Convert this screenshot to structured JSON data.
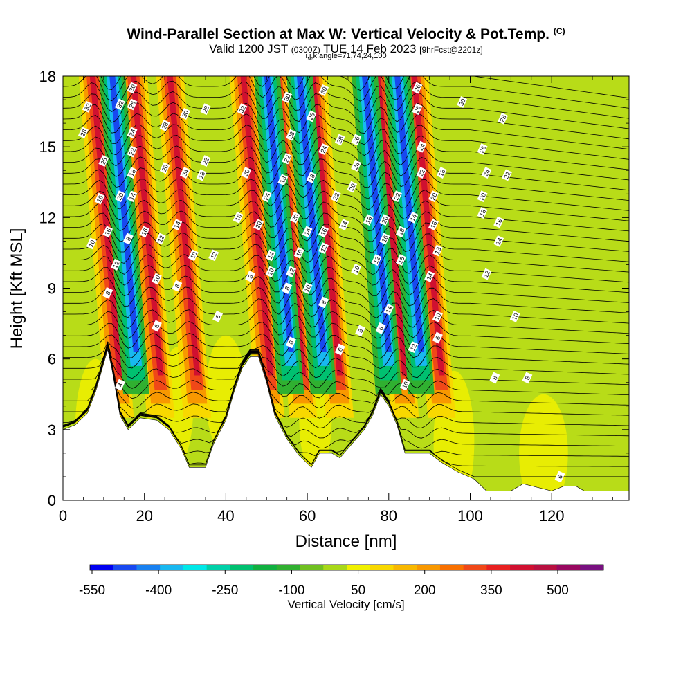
{
  "header": {
    "title": "Wind-Parallel Section at Max W: Vertical Velocity & Pot.Temp.",
    "title_tag": "(C)",
    "valid_prefix": "Valid 1200 JST",
    "valid_utc": "(0300Z)",
    "valid_date": "TUE 14 Feb 2023",
    "forecast": "[9hrFcst@2201z]",
    "indices": "i,j,k,angle=71,74,24,100"
  },
  "chart_data": {
    "type": "heatmap",
    "xlabel": "Distance [nm]",
    "ylabel": "Height [Kft MSL]",
    "xlim": [
      0,
      139
    ],
    "ylim": [
      0,
      18
    ],
    "xticks": [
      "0",
      "20",
      "40",
      "60",
      "80",
      "100",
      "120"
    ],
    "yticks": [
      "0",
      "3",
      "6",
      "9",
      "12",
      "15",
      "18"
    ],
    "colorbar": {
      "label": "Vertical Velocity [cm/s]",
      "tick_labels": [
        "-550",
        "-400",
        "-250",
        "-100",
        "50",
        "200",
        "350",
        "500"
      ],
      "colors": [
        "#0000f0",
        "#1848f0",
        "#1880f0",
        "#18b8f0",
        "#00e8e8",
        "#00d0a8",
        "#00c070",
        "#10b040",
        "#30b030",
        "#70c020",
        "#a8d818",
        "#f0f000",
        "#f8d800",
        "#f8b800",
        "#f89800",
        "#f87000",
        "#f04818",
        "#e82020",
        "#d01030",
        "#b81040",
        "#980860",
        "#781080"
      ]
    },
    "terrain_kft": [
      [
        0,
        3.0
      ],
      [
        3,
        3.2
      ],
      [
        6,
        3.7
      ],
      [
        8,
        4.6
      ],
      [
        10,
        5.8
      ],
      [
        11,
        6.4
      ],
      [
        12,
        5.6
      ],
      [
        13,
        4.6
      ],
      [
        14,
        3.6
      ],
      [
        16,
        3.0
      ],
      [
        19,
        3.5
      ],
      [
        23,
        3.4
      ],
      [
        26,
        3.0
      ],
      [
        29,
        2.2
      ],
      [
        31,
        1.4
      ],
      [
        35,
        1.4
      ],
      [
        37,
        2.4
      ],
      [
        40,
        3.4
      ],
      [
        42,
        4.6
      ],
      [
        44,
        5.6
      ],
      [
        46,
        6.1
      ],
      [
        48,
        6.1
      ],
      [
        50,
        5.0
      ],
      [
        52,
        3.6
      ],
      [
        55,
        2.6
      ],
      [
        58,
        1.9
      ],
      [
        61,
        1.4
      ],
      [
        63,
        2.0
      ],
      [
        66,
        2.0
      ],
      [
        68,
        1.8
      ],
      [
        71,
        2.4
      ],
      [
        74,
        3.0
      ],
      [
        76,
        3.6
      ],
      [
        78,
        4.5
      ],
      [
        80,
        4.0
      ],
      [
        82,
        3.2
      ],
      [
        84,
        2.0
      ],
      [
        87,
        2.0
      ],
      [
        90,
        2.0
      ],
      [
        93,
        1.6
      ],
      [
        97,
        1.2
      ],
      [
        101,
        0.9
      ],
      [
        104,
        0.4
      ],
      [
        110,
        0.4
      ],
      [
        113,
        0.7
      ],
      [
        120,
        0.4
      ],
      [
        123,
        0.6
      ],
      [
        126,
        0.6
      ],
      [
        128,
        0.4
      ],
      [
        139,
        0.4
      ]
    ],
    "updraft_bands_nm": [
      14,
      24,
      33,
      51,
      59,
      68,
      84,
      93
    ],
    "downdraft_bands_nm": [
      18,
      56,
      64,
      80,
      88
    ],
    "contour_labels": [
      {
        "text": "32",
        "x": 6,
        "y": 16.7
      },
      {
        "text": "28",
        "x": 5,
        "y": 15.6
      },
      {
        "text": "26",
        "x": 10,
        "y": 14.4
      },
      {
        "text": "16",
        "x": 9,
        "y": 12.8
      },
      {
        "text": "10",
        "x": 7,
        "y": 10.9
      },
      {
        "text": "8",
        "x": 11,
        "y": 8.8
      },
      {
        "text": "30",
        "x": 17,
        "y": 17.5
      },
      {
        "text": "32",
        "x": 14,
        "y": 16.8
      },
      {
        "text": "26",
        "x": 17,
        "y": 16.8
      },
      {
        "text": "24",
        "x": 17,
        "y": 15.6
      },
      {
        "text": "22",
        "x": 17,
        "y": 14.8
      },
      {
        "text": "18",
        "x": 17,
        "y": 13.9
      },
      {
        "text": "20",
        "x": 14,
        "y": 12.9
      },
      {
        "text": "14",
        "x": 17,
        "y": 12.9
      },
      {
        "text": "16",
        "x": 11,
        "y": 11.4
      },
      {
        "text": "8",
        "x": 16,
        "y": 11.1
      },
      {
        "text": "16",
        "x": 20,
        "y": 11.4
      },
      {
        "text": "12",
        "x": 13,
        "y": 10.0
      },
      {
        "text": "4",
        "x": 14,
        "y": 4.9
      },
      {
        "text": "28",
        "x": 25,
        "y": 15.9
      },
      {
        "text": "30",
        "x": 30,
        "y": 16.4
      },
      {
        "text": "28",
        "x": 35,
        "y": 16.6
      },
      {
        "text": "20",
        "x": 25,
        "y": 14.1
      },
      {
        "text": "24",
        "x": 30,
        "y": 13.9
      },
      {
        "text": "22",
        "x": 35,
        "y": 14.4
      },
      {
        "text": "18",
        "x": 34,
        "y": 13.8
      },
      {
        "text": "12",
        "x": 24,
        "y": 11.1
      },
      {
        "text": "14",
        "x": 28,
        "y": 11.7
      },
      {
        "text": "10",
        "x": 32,
        "y": 10.4
      },
      {
        "text": "12",
        "x": 37,
        "y": 10.4
      },
      {
        "text": "10",
        "x": 23,
        "y": 9.4
      },
      {
        "text": "8",
        "x": 28,
        "y": 9.1
      },
      {
        "text": "6",
        "x": 23,
        "y": 7.4
      },
      {
        "text": "6",
        "x": 38,
        "y": 7.8
      },
      {
        "text": "32",
        "x": 44,
        "y": 16.6
      },
      {
        "text": "20",
        "x": 45,
        "y": 13.9
      },
      {
        "text": "16",
        "x": 43,
        "y": 12.0
      },
      {
        "text": "20",
        "x": 48,
        "y": 11.7
      },
      {
        "text": "8",
        "x": 46,
        "y": 9.5
      },
      {
        "text": "14",
        "x": 51,
        "y": 10.4
      },
      {
        "text": "10",
        "x": 51,
        "y": 9.7
      },
      {
        "text": "24",
        "x": 50,
        "y": 12.9
      },
      {
        "text": "18",
        "x": 54,
        "y": 13.6
      },
      {
        "text": "22",
        "x": 55,
        "y": 14.5
      },
      {
        "text": "28",
        "x": 56,
        "y": 15.5
      },
      {
        "text": "30",
        "x": 55,
        "y": 17.1
      },
      {
        "text": "30",
        "x": 64,
        "y": 17.4
      },
      {
        "text": "26",
        "x": 61,
        "y": 16.3
      },
      {
        "text": "24",
        "x": 64,
        "y": 14.9
      },
      {
        "text": "18",
        "x": 61,
        "y": 13.7
      },
      {
        "text": "20",
        "x": 57,
        "y": 12.0
      },
      {
        "text": "14",
        "x": 60,
        "y": 11.4
      },
      {
        "text": "16",
        "x": 58,
        "y": 10.5
      },
      {
        "text": "12",
        "x": 56,
        "y": 9.7
      },
      {
        "text": "8",
        "x": 55,
        "y": 9.0
      },
      {
        "text": "10",
        "x": 60,
        "y": 9.0
      },
      {
        "text": "8",
        "x": 64,
        "y": 8.4
      },
      {
        "text": "6",
        "x": 56,
        "y": 6.7
      },
      {
        "text": "16",
        "x": 64,
        "y": 11.4
      },
      {
        "text": "12",
        "x": 64,
        "y": 10.7
      },
      {
        "text": "28",
        "x": 68,
        "y": 15.3
      },
      {
        "text": "22",
        "x": 67,
        "y": 12.9
      },
      {
        "text": "14",
        "x": 69,
        "y": 11.7
      },
      {
        "text": "26",
        "x": 72,
        "y": 15.3
      },
      {
        "text": "24",
        "x": 72,
        "y": 14.2
      },
      {
        "text": "20",
        "x": 71,
        "y": 13.3
      },
      {
        "text": "10",
        "x": 72,
        "y": 9.8
      },
      {
        "text": "6",
        "x": 68,
        "y": 6.4
      },
      {
        "text": "8",
        "x": 73,
        "y": 7.2
      },
      {
        "text": "16",
        "x": 75,
        "y": 11.9
      },
      {
        "text": "12",
        "x": 77,
        "y": 10.2
      },
      {
        "text": "6",
        "x": 78,
        "y": 7.3
      },
      {
        "text": "20",
        "x": 79,
        "y": 11.9
      },
      {
        "text": "16",
        "x": 79,
        "y": 11.1
      },
      {
        "text": "14",
        "x": 80,
        "y": 8.1
      },
      {
        "text": "22",
        "x": 82,
        "y": 12.9
      },
      {
        "text": "18",
        "x": 83,
        "y": 11.4
      },
      {
        "text": "16",
        "x": 83,
        "y": 10.2
      },
      {
        "text": "10",
        "x": 84,
        "y": 4.9
      },
      {
        "text": "12",
        "x": 86,
        "y": 6.5
      },
      {
        "text": "14",
        "x": 86,
        "y": 12.0
      },
      {
        "text": "26",
        "x": 87,
        "y": 17.5
      },
      {
        "text": "26",
        "x": 87,
        "y": 16.6
      },
      {
        "text": "24",
        "x": 88,
        "y": 15.0
      },
      {
        "text": "22",
        "x": 88,
        "y": 13.9
      },
      {
        "text": "18",
        "x": 93,
        "y": 13.9
      },
      {
        "text": "20",
        "x": 91,
        "y": 12.9
      },
      {
        "text": "16",
        "x": 91,
        "y": 11.7
      },
      {
        "text": "13",
        "x": 92,
        "y": 10.6
      },
      {
        "text": "14",
        "x": 90,
        "y": 9.5
      },
      {
        "text": "10",
        "x": 92,
        "y": 7.8
      },
      {
        "text": "6",
        "x": 92,
        "y": 6.9
      },
      {
        "text": "30",
        "x": 98,
        "y": 16.9
      },
      {
        "text": "28",
        "x": 108,
        "y": 16.2
      },
      {
        "text": "26",
        "x": 103,
        "y": 14.9
      },
      {
        "text": "24",
        "x": 104,
        "y": 13.9
      },
      {
        "text": "22",
        "x": 109,
        "y": 13.8
      },
      {
        "text": "20",
        "x": 103,
        "y": 12.9
      },
      {
        "text": "18",
        "x": 103,
        "y": 12.2
      },
      {
        "text": "16",
        "x": 107,
        "y": 11.8
      },
      {
        "text": "14",
        "x": 107,
        "y": 11.0
      },
      {
        "text": "12",
        "x": 104,
        "y": 9.6
      },
      {
        "text": "10",
        "x": 111,
        "y": 7.8
      },
      {
        "text": "8",
        "x": 106,
        "y": 5.2
      },
      {
        "text": "8",
        "x": 114,
        "y": 5.2
      },
      {
        "text": "6",
        "x": 122,
        "y": 1.0
      }
    ]
  }
}
